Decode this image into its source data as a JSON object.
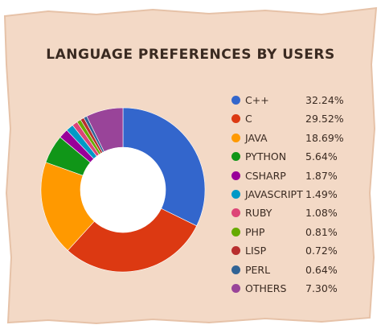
{
  "chart_data": {
    "type": "pie",
    "style": "donut",
    "title": "Language Preferences by Users",
    "legend_position": "right",
    "categories": [
      "C++",
      "C",
      "JAVA",
      "PYTHON",
      "CSHARP",
      "JAVASCRIPT",
      "RUBY",
      "PHP",
      "LISP",
      "PERL",
      "OTHERS"
    ],
    "values": [
      32.24,
      29.52,
      18.69,
      5.64,
      1.87,
      1.49,
      1.08,
      0.81,
      0.72,
      0.64,
      7.3
    ],
    "value_labels": [
      "32.24%",
      "29.52%",
      "18.69%",
      "5.64%",
      "1.87%",
      "1.49%",
      "1.08%",
      "0.81%",
      "0.72%",
      "0.64%",
      "7.30%"
    ],
    "colors": [
      "#3366cc",
      "#dc3912",
      "#ff9900",
      "#109618",
      "#990099",
      "#0099c6",
      "#dd4477",
      "#66aa00",
      "#b82e2e",
      "#316395",
      "#994499"
    ]
  },
  "background": {
    "paper_color": "#f3d9c6",
    "paper_edge_color": "#e6c2a8"
  }
}
